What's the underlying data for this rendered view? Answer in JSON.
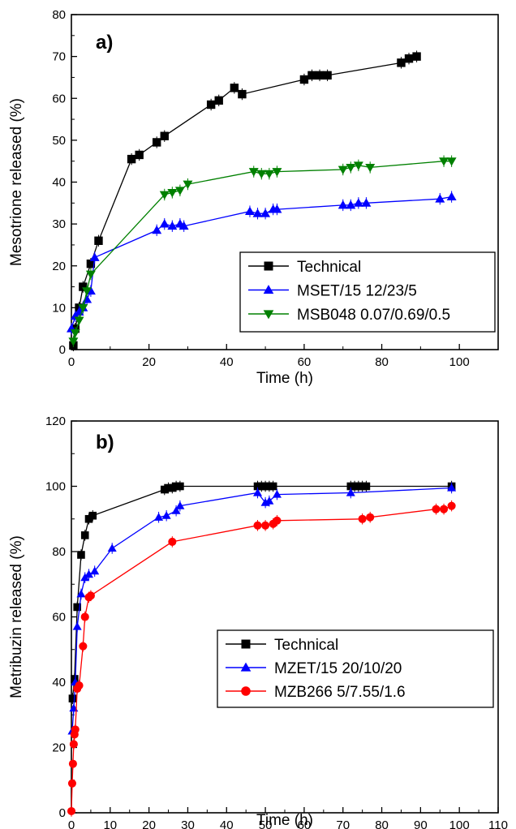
{
  "chart_data": [
    {
      "type": "scatter",
      "panel_label": "a)",
      "xlabel": "Time (h)",
      "ylabel": "Mesotrione released (%)",
      "xlim": [
        0,
        110
      ],
      "ylim": [
        0,
        80
      ],
      "xticks": [
        0,
        20,
        40,
        60,
        80,
        100
      ],
      "yticks": [
        0,
        10,
        20,
        30,
        40,
        50,
        60,
        70,
        80
      ],
      "grid": false,
      "legend_position": "lower-right",
      "series": [
        {
          "name": "Technical",
          "color": "#000000",
          "marker": "square",
          "x": [
            0.5,
            1,
            2,
            3,
            5,
            7,
            15.5,
            17.5,
            22,
            24,
            36,
            38,
            42,
            44,
            60,
            62,
            64,
            66,
            85,
            87,
            89
          ],
          "y": [
            1,
            5,
            10,
            15,
            20.5,
            26,
            45.5,
            46.5,
            49.5,
            51,
            58.5,
            59.5,
            62.5,
            61,
            64.5,
            65.5,
            65.5,
            65.5,
            68.5,
            69.5,
            70
          ]
        },
        {
          "name": "MSET/15 12/23/5",
          "color": "#0000ff",
          "marker": "triangle-up",
          "x": [
            0,
            1,
            2,
            3,
            4,
            5,
            6,
            22,
            24,
            26,
            28,
            29,
            46,
            48,
            50,
            52,
            53,
            70,
            72,
            74,
            76,
            95,
            98
          ],
          "y": [
            5,
            8,
            9,
            10,
            12,
            14,
            22,
            28.5,
            30,
            29.5,
            30,
            29.5,
            33,
            32.5,
            32.5,
            33.5,
            33.5,
            34.5,
            34.5,
            35,
            35,
            36,
            36.5
          ]
        },
        {
          "name": "MSB048 0.07/0.69/0.5",
          "color": "#008000",
          "marker": "triangle-down",
          "x": [
            0.5,
            1,
            2,
            3,
            4,
            5,
            24,
            26,
            28,
            30,
            47,
            49,
            51,
            53,
            70,
            72,
            74,
            77,
            96,
            98
          ],
          "y": [
            2,
            4,
            7,
            10,
            14,
            18,
            37,
            37.5,
            38,
            39.5,
            42.5,
            42,
            42,
            42.5,
            43,
            43.5,
            44,
            43.5,
            45,
            45
          ]
        }
      ]
    },
    {
      "type": "scatter",
      "panel_label": "b)",
      "xlabel": "Time (h)",
      "ylabel": "Metribuzin released (%)",
      "xlim": [
        0,
        110
      ],
      "ylim": [
        0,
        120
      ],
      "xticks": [
        0,
        10,
        20,
        30,
        40,
        50,
        60,
        70,
        80,
        90,
        100,
        110
      ],
      "yticks": [
        0,
        20,
        40,
        60,
        80,
        100,
        120
      ],
      "grid": false,
      "legend_position": "lower-right",
      "series": [
        {
          "name": "Technical",
          "color": "#000000",
          "marker": "square",
          "x": [
            0.3,
            0.8,
            1.5,
            2.5,
            3.5,
            4.5,
            5.5,
            24,
            25,
            26,
            27,
            28,
            48,
            49,
            50,
            51,
            52,
            72,
            73,
            74,
            75,
            76,
            98
          ],
          "y": [
            35,
            41,
            63,
            79,
            85,
            90,
            91,
            99,
            99.5,
            99.5,
            100,
            100,
            100,
            100,
            100,
            100,
            100,
            100,
            100,
            100,
            100,
            100,
            100
          ]
        },
        {
          "name": "MZET/15 20/10/20",
          "color": "#0000ff",
          "marker": "triangle-up",
          "x": [
            0.2,
            0.6,
            1,
            1.5,
            2.5,
            3.5,
            4.5,
            6,
            10.5,
            22.5,
            24.5,
            27,
            28,
            48,
            50,
            51,
            53,
            72,
            98
          ],
          "y": [
            25,
            32,
            40,
            57,
            67,
            72,
            73,
            74,
            81,
            90.5,
            91,
            92.5,
            94,
            98,
            95,
            95.5,
            97.5,
            98,
            99.5
          ]
        },
        {
          "name": "MZB266 5/7.55/1.6",
          "color": "#ff0000",
          "marker": "circle",
          "x": [
            0,
            0.2,
            0.4,
            0.6,
            0.8,
            1,
            1.5,
            2,
            3,
            3.5,
            4.5,
            5,
            26,
            48,
            50,
            52,
            53,
            75,
            77,
            94,
            96,
            98
          ],
          "y": [
            0.5,
            9,
            15,
            21,
            24,
            25.5,
            38,
            39,
            51,
            60,
            66,
            66.5,
            83,
            88,
            88,
            88.5,
            89.5,
            90,
            90.5,
            93,
            93,
            94
          ]
        }
      ]
    }
  ]
}
